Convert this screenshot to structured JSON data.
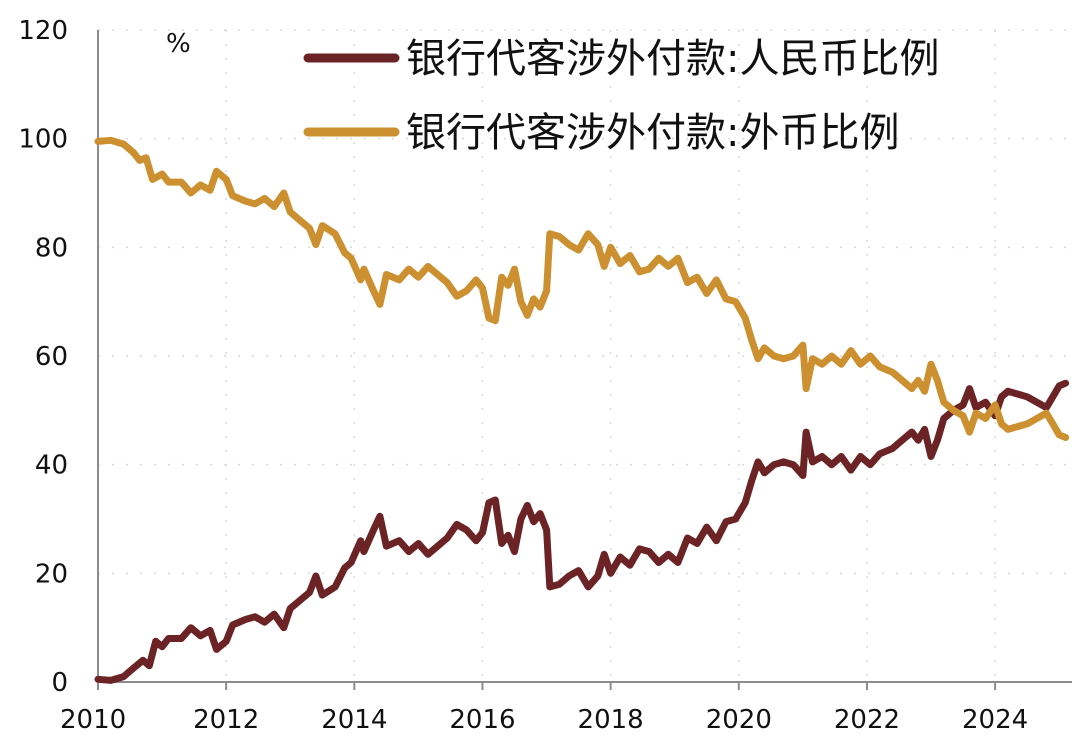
{
  "chart_data": {
    "type": "line",
    "title": "",
    "unit_label": "%",
    "xlabel": "",
    "ylabel": "",
    "xlim": [
      2010.0,
      2025.2
    ],
    "ylim": [
      0,
      120
    ],
    "y_ticks": [
      0,
      20,
      40,
      60,
      80,
      100,
      120
    ],
    "x_ticks": [
      2010,
      2012,
      2014,
      2016,
      2018,
      2020,
      2022,
      2024
    ],
    "grid": true,
    "legend_position": "top-right",
    "series": [
      {
        "name": "银行代客涉外付款:人民币比例",
        "color": "#6b2326",
        "points": [
          [
            2010.0,
            0.5
          ],
          [
            2010.2,
            0.3
          ],
          [
            2010.4,
            1.0
          ],
          [
            2010.55,
            2.5
          ],
          [
            2010.7,
            4.0
          ],
          [
            2010.8,
            3.0
          ],
          [
            2010.9,
            7.5
          ],
          [
            2011.0,
            6.5
          ],
          [
            2011.1,
            8.0
          ],
          [
            2011.3,
            8.0
          ],
          [
            2011.45,
            10.0
          ],
          [
            2011.6,
            8.5
          ],
          [
            2011.75,
            9.5
          ],
          [
            2011.85,
            6.0
          ],
          [
            2012.0,
            7.5
          ],
          [
            2012.1,
            10.5
          ],
          [
            2012.3,
            11.5
          ],
          [
            2012.45,
            12.0
          ],
          [
            2012.6,
            11.0
          ],
          [
            2012.75,
            12.5
          ],
          [
            2012.9,
            10.0
          ],
          [
            2013.0,
            13.5
          ],
          [
            2013.15,
            15.0
          ],
          [
            2013.3,
            16.5
          ],
          [
            2013.4,
            19.5
          ],
          [
            2013.5,
            16.0
          ],
          [
            2013.7,
            17.5
          ],
          [
            2013.85,
            21.0
          ],
          [
            2013.95,
            22.0
          ],
          [
            2014.1,
            26.0
          ],
          [
            2014.15,
            24.0
          ],
          [
            2014.3,
            28.0
          ],
          [
            2014.4,
            30.5
          ],
          [
            2014.5,
            25.0
          ],
          [
            2014.7,
            26.0
          ],
          [
            2014.85,
            24.0
          ],
          [
            2015.0,
            25.5
          ],
          [
            2015.15,
            23.5
          ],
          [
            2015.3,
            25.0
          ],
          [
            2015.45,
            26.5
          ],
          [
            2015.6,
            29.0
          ],
          [
            2015.75,
            28.0
          ],
          [
            2015.9,
            26.0
          ],
          [
            2016.0,
            27.5
          ],
          [
            2016.1,
            33.0
          ],
          [
            2016.2,
            33.5
          ],
          [
            2016.3,
            25.5
          ],
          [
            2016.4,
            27.0
          ],
          [
            2016.5,
            24.0
          ],
          [
            2016.6,
            30.0
          ],
          [
            2016.7,
            32.5
          ],
          [
            2016.8,
            29.5
          ],
          [
            2016.9,
            31.0
          ],
          [
            2017.0,
            28.0
          ],
          [
            2017.05,
            17.5
          ],
          [
            2017.2,
            18.0
          ],
          [
            2017.35,
            19.5
          ],
          [
            2017.5,
            20.5
          ],
          [
            2017.65,
            17.5
          ],
          [
            2017.8,
            19.5
          ],
          [
            2017.9,
            23.5
          ],
          [
            2018.0,
            20.0
          ],
          [
            2018.15,
            23.0
          ],
          [
            2018.3,
            21.5
          ],
          [
            2018.45,
            24.5
          ],
          [
            2018.6,
            24.0
          ],
          [
            2018.75,
            22.0
          ],
          [
            2018.9,
            23.5
          ],
          [
            2019.05,
            22.0
          ],
          [
            2019.2,
            26.5
          ],
          [
            2019.35,
            25.5
          ],
          [
            2019.5,
            28.5
          ],
          [
            2019.65,
            26.0
          ],
          [
            2019.8,
            29.5
          ],
          [
            2019.95,
            30.0
          ],
          [
            2020.1,
            33.0
          ],
          [
            2020.2,
            37.0
          ],
          [
            2020.3,
            40.5
          ],
          [
            2020.4,
            38.5
          ],
          [
            2020.55,
            40.0
          ],
          [
            2020.7,
            40.5
          ],
          [
            2020.85,
            40.0
          ],
          [
            2021.0,
            38.0
          ],
          [
            2021.05,
            46.0
          ],
          [
            2021.15,
            40.5
          ],
          [
            2021.3,
            41.5
          ],
          [
            2021.45,
            40.0
          ],
          [
            2021.6,
            41.5
          ],
          [
            2021.75,
            39.0
          ],
          [
            2021.9,
            41.5
          ],
          [
            2022.05,
            40.0
          ],
          [
            2022.2,
            42.0
          ],
          [
            2022.4,
            43.0
          ],
          [
            2022.55,
            44.5
          ],
          [
            2022.7,
            46.0
          ],
          [
            2022.8,
            44.5
          ],
          [
            2022.9,
            46.5
          ],
          [
            2023.0,
            41.5
          ],
          [
            2023.1,
            44.5
          ],
          [
            2023.2,
            48.5
          ],
          [
            2023.35,
            50.0
          ],
          [
            2023.5,
            51.0
          ],
          [
            2023.6,
            54.0
          ],
          [
            2023.7,
            50.5
          ],
          [
            2023.85,
            51.5
          ],
          [
            2024.0,
            49.0
          ],
          [
            2024.1,
            52.5
          ],
          [
            2024.2,
            53.5
          ],
          [
            2024.35,
            53.0
          ],
          [
            2024.5,
            52.5
          ],
          [
            2024.65,
            51.5
          ],
          [
            2024.8,
            50.5
          ],
          [
            2024.9,
            52.5
          ],
          [
            2025.0,
            54.5
          ],
          [
            2025.1,
            55.0
          ]
        ]
      },
      {
        "name": "银行代客涉外付款:外币比例",
        "color": "#cc9030",
        "points": [
          [
            2010.0,
            99.5
          ],
          [
            2010.2,
            99.7
          ],
          [
            2010.4,
            99.0
          ],
          [
            2010.55,
            97.5
          ],
          [
            2010.65,
            96.0
          ],
          [
            2010.75,
            96.5
          ],
          [
            2010.85,
            92.5
          ],
          [
            2011.0,
            93.5
          ],
          [
            2011.1,
            92.0
          ],
          [
            2011.3,
            92.0
          ],
          [
            2011.45,
            90.0
          ],
          [
            2011.6,
            91.5
          ],
          [
            2011.75,
            90.5
          ],
          [
            2011.85,
            94.0
          ],
          [
            2012.0,
            92.5
          ],
          [
            2012.1,
            89.5
          ],
          [
            2012.3,
            88.5
          ],
          [
            2012.45,
            88.0
          ],
          [
            2012.6,
            89.0
          ],
          [
            2012.75,
            87.5
          ],
          [
            2012.9,
            90.0
          ],
          [
            2013.0,
            86.5
          ],
          [
            2013.15,
            85.0
          ],
          [
            2013.3,
            83.5
          ],
          [
            2013.4,
            80.5
          ],
          [
            2013.5,
            84.0
          ],
          [
            2013.7,
            82.5
          ],
          [
            2013.85,
            79.0
          ],
          [
            2013.95,
            78.0
          ],
          [
            2014.1,
            74.0
          ],
          [
            2014.15,
            76.0
          ],
          [
            2014.3,
            72.0
          ],
          [
            2014.4,
            69.5
          ],
          [
            2014.5,
            75.0
          ],
          [
            2014.7,
            74.0
          ],
          [
            2014.85,
            76.0
          ],
          [
            2015.0,
            74.5
          ],
          [
            2015.15,
            76.5
          ],
          [
            2015.3,
            75.0
          ],
          [
            2015.45,
            73.5
          ],
          [
            2015.6,
            71.0
          ],
          [
            2015.75,
            72.0
          ],
          [
            2015.9,
            74.0
          ],
          [
            2016.0,
            72.5
          ],
          [
            2016.1,
            67.0
          ],
          [
            2016.2,
            66.5
          ],
          [
            2016.3,
            74.5
          ],
          [
            2016.4,
            73.0
          ],
          [
            2016.5,
            76.0
          ],
          [
            2016.6,
            70.0
          ],
          [
            2016.7,
            67.5
          ],
          [
            2016.8,
            70.5
          ],
          [
            2016.9,
            69.0
          ],
          [
            2017.0,
            72.0
          ],
          [
            2017.05,
            82.5
          ],
          [
            2017.2,
            82.0
          ],
          [
            2017.35,
            80.5
          ],
          [
            2017.5,
            79.5
          ],
          [
            2017.65,
            82.5
          ],
          [
            2017.8,
            80.5
          ],
          [
            2017.9,
            76.5
          ],
          [
            2018.0,
            80.0
          ],
          [
            2018.15,
            77.0
          ],
          [
            2018.3,
            78.5
          ],
          [
            2018.45,
            75.5
          ],
          [
            2018.6,
            76.0
          ],
          [
            2018.75,
            78.0
          ],
          [
            2018.9,
            76.5
          ],
          [
            2019.05,
            78.0
          ],
          [
            2019.2,
            73.5
          ],
          [
            2019.35,
            74.5
          ],
          [
            2019.5,
            71.5
          ],
          [
            2019.65,
            74.0
          ],
          [
            2019.8,
            70.5
          ],
          [
            2019.95,
            70.0
          ],
          [
            2020.1,
            67.0
          ],
          [
            2020.2,
            63.0
          ],
          [
            2020.3,
            59.5
          ],
          [
            2020.4,
            61.5
          ],
          [
            2020.55,
            60.0
          ],
          [
            2020.7,
            59.5
          ],
          [
            2020.85,
            60.0
          ],
          [
            2021.0,
            62.0
          ],
          [
            2021.05,
            54.0
          ],
          [
            2021.15,
            59.5
          ],
          [
            2021.3,
            58.5
          ],
          [
            2021.45,
            60.0
          ],
          [
            2021.6,
            58.5
          ],
          [
            2021.75,
            61.0
          ],
          [
            2021.9,
            58.5
          ],
          [
            2022.05,
            60.0
          ],
          [
            2022.2,
            58.0
          ],
          [
            2022.4,
            57.0
          ],
          [
            2022.55,
            55.5
          ],
          [
            2022.7,
            54.0
          ],
          [
            2022.8,
            55.5
          ],
          [
            2022.9,
            53.5
          ],
          [
            2023.0,
            58.5
          ],
          [
            2023.1,
            55.5
          ],
          [
            2023.2,
            51.5
          ],
          [
            2023.35,
            50.0
          ],
          [
            2023.5,
            49.0
          ],
          [
            2023.6,
            46.0
          ],
          [
            2023.7,
            49.5
          ],
          [
            2023.85,
            48.5
          ],
          [
            2024.0,
            51.0
          ],
          [
            2024.1,
            47.5
          ],
          [
            2024.2,
            46.5
          ],
          [
            2024.35,
            47.0
          ],
          [
            2024.5,
            47.5
          ],
          [
            2024.65,
            48.5
          ],
          [
            2024.8,
            49.5
          ],
          [
            2024.9,
            47.5
          ],
          [
            2025.0,
            45.5
          ],
          [
            2025.1,
            45.0
          ]
        ]
      }
    ]
  }
}
